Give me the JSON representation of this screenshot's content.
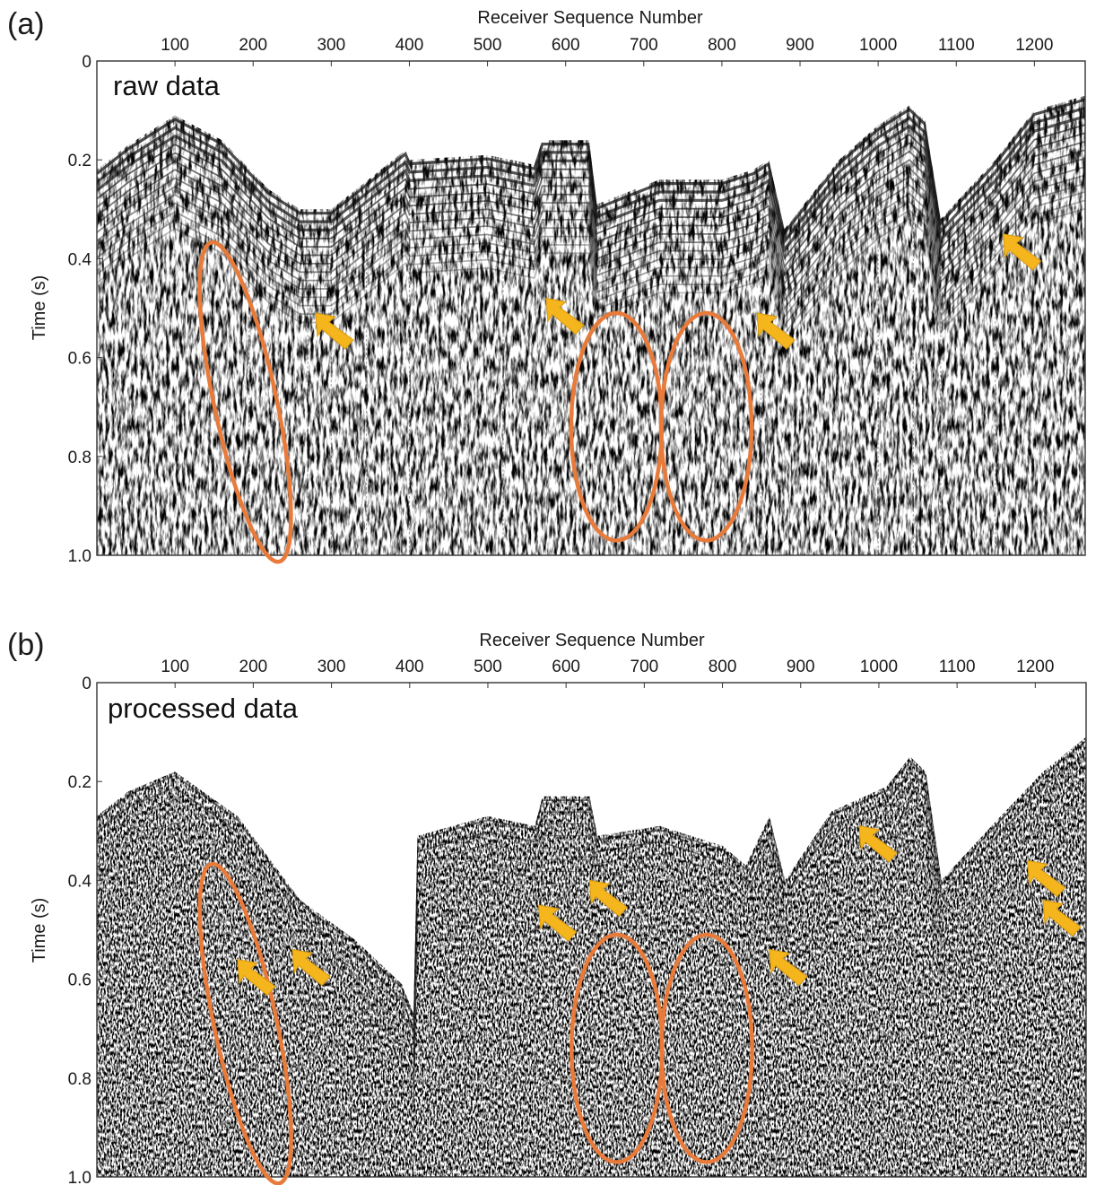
{
  "chart_data": [
    {
      "type": "heatmap",
      "panel_label": "(a)",
      "inset_label": "raw data",
      "xlabel": "Receiver Sequence Number",
      "ylabel": "Time (s)",
      "xlim": [
        0,
        1265
      ],
      "ylim": [
        0,
        1.0
      ],
      "y_inverted": true,
      "x_axis_position": "top",
      "x_ticks": [
        "100",
        "200",
        "300",
        "400",
        "500",
        "600",
        "700",
        "800",
        "900",
        "1000",
        "1100",
        "1200"
      ],
      "y_ticks": [
        "0",
        "0.2",
        "0.4",
        "0.6",
        "0.8",
        "1.0"
      ],
      "first_break_profile": [
        [
          0,
          0.22
        ],
        [
          40,
          0.17
        ],
        [
          100,
          0.11
        ],
        [
          160,
          0.16
        ],
        [
          220,
          0.26
        ],
        [
          260,
          0.3
        ],
        [
          300,
          0.3
        ],
        [
          395,
          0.18
        ],
        [
          400,
          0.2
        ],
        [
          500,
          0.19
        ],
        [
          560,
          0.21
        ],
        [
          570,
          0.16
        ],
        [
          630,
          0.16
        ],
        [
          640,
          0.29
        ],
        [
          720,
          0.24
        ],
        [
          800,
          0.24
        ],
        [
          840,
          0.22
        ],
        [
          860,
          0.2
        ],
        [
          880,
          0.34
        ],
        [
          950,
          0.2
        ],
        [
          1000,
          0.13
        ],
        [
          1040,
          0.09
        ],
        [
          1060,
          0.12
        ],
        [
          1080,
          0.32
        ],
        [
          1150,
          0.2
        ],
        [
          1200,
          0.1
        ],
        [
          1265,
          0.07
        ]
      ],
      "ellipse_color": "#e87a3a",
      "arrow_color": "#f5b51c",
      "ellipses": [
        {
          "x": 190,
          "t": 0.69,
          "rx": 40,
          "rt": 0.33,
          "tilt_deg": -12
        },
        {
          "x": 665,
          "t": 0.74,
          "rx": 58,
          "rt": 0.23,
          "tilt_deg": 0
        },
        {
          "x": 780,
          "t": 0.74,
          "rx": 58,
          "rt": 0.23,
          "tilt_deg": 0
        }
      ],
      "arrows": [
        {
          "x": 280,
          "t": 0.51
        },
        {
          "x": 575,
          "t": 0.48
        },
        {
          "x": 845,
          "t": 0.51
        },
        {
          "x": 1160,
          "t": 0.35
        }
      ]
    },
    {
      "type": "heatmap",
      "panel_label": "(b)",
      "inset_label": "processed data",
      "xlabel": "Receiver Sequence Number",
      "ylabel": "Time (s)",
      "xlim": [
        0,
        1265
      ],
      "ylim": [
        0,
        1.0
      ],
      "y_inverted": true,
      "x_axis_position": "top",
      "x_ticks": [
        "100",
        "200",
        "300",
        "400",
        "500",
        "600",
        "700",
        "800",
        "900",
        "1000",
        "1100",
        "1200"
      ],
      "y_ticks": [
        "0",
        "0.2",
        "0.4",
        "0.6",
        "0.8",
        "1.0"
      ],
      "first_break_profile": [
        [
          0,
          0.27
        ],
        [
          40,
          0.22
        ],
        [
          100,
          0.18
        ],
        [
          180,
          0.27
        ],
        [
          260,
          0.44
        ],
        [
          330,
          0.52
        ],
        [
          390,
          0.61
        ],
        [
          405,
          0.67
        ],
        [
          410,
          0.31
        ],
        [
          500,
          0.27
        ],
        [
          560,
          0.29
        ],
        [
          570,
          0.23
        ],
        [
          630,
          0.23
        ],
        [
          640,
          0.31
        ],
        [
          720,
          0.29
        ],
        [
          800,
          0.33
        ],
        [
          830,
          0.37
        ],
        [
          860,
          0.27
        ],
        [
          880,
          0.4
        ],
        [
          940,
          0.26
        ],
        [
          1010,
          0.21
        ],
        [
          1040,
          0.15
        ],
        [
          1060,
          0.18
        ],
        [
          1080,
          0.4
        ],
        [
          1150,
          0.28
        ],
        [
          1210,
          0.18
        ],
        [
          1265,
          0.11
        ]
      ],
      "ellipse_color": "#e87a3a",
      "arrow_color": "#f5b51c",
      "ellipses": [
        {
          "x": 190,
          "t": 0.69,
          "rx": 40,
          "rt": 0.33,
          "tilt_deg": -12
        },
        {
          "x": 665,
          "t": 0.74,
          "rx": 58,
          "rt": 0.23,
          "tilt_deg": 0
        },
        {
          "x": 780,
          "t": 0.74,
          "rx": 58,
          "rt": 0.23,
          "tilt_deg": 0
        }
      ],
      "arrows": [
        {
          "x": 180,
          "t": 0.56
        },
        {
          "x": 250,
          "t": 0.54
        },
        {
          "x": 565,
          "t": 0.45
        },
        {
          "x": 630,
          "t": 0.4
        },
        {
          "x": 860,
          "t": 0.54
        },
        {
          "x": 975,
          "t": 0.29
        },
        {
          "x": 1190,
          "t": 0.36
        },
        {
          "x": 1210,
          "t": 0.44
        }
      ]
    }
  ]
}
